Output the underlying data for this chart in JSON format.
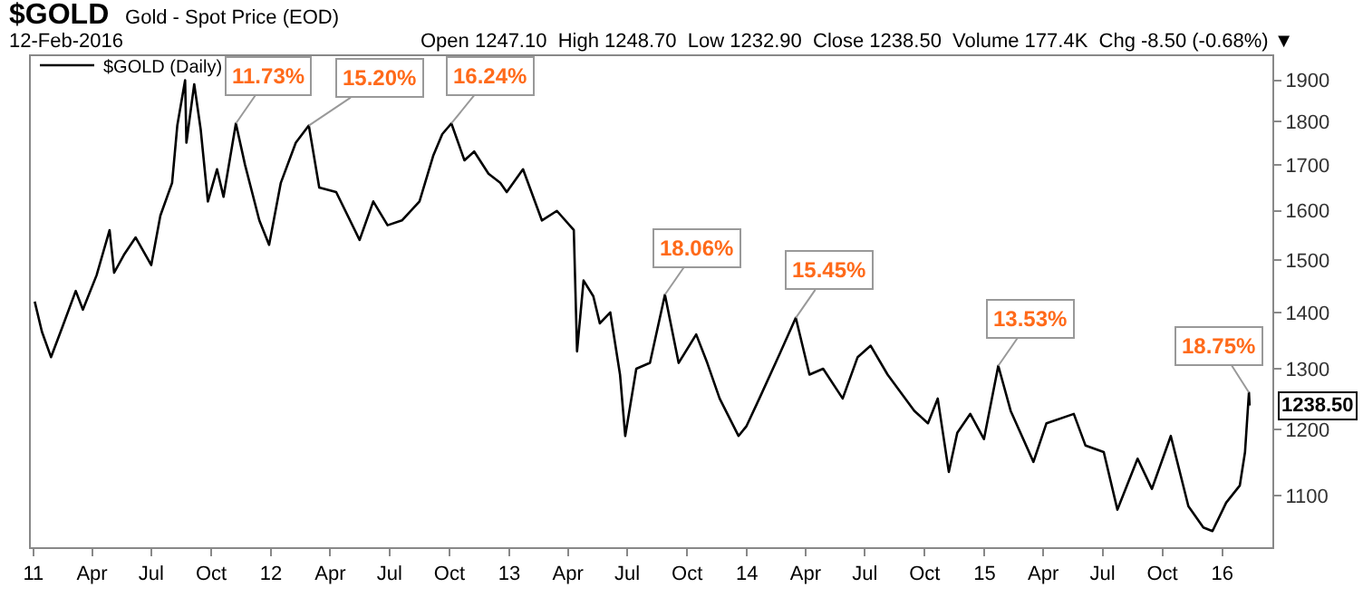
{
  "chart_data": {
    "type": "line",
    "title": "$GOLD",
    "subtitle": "Gold - Spot Price (EOD)",
    "annotations": [
      "12-Feb-2016",
      "Open 1247.10  High 1248.70  Low 1232.90  Close 1238.50  Volume 177.4K  Chg -8.50 (-0.68%) ▼",
      {
        "text": "11.73%",
        "x": "2011-11-08",
        "y": 1795
      },
      {
        "text": "15.20%",
        "x": "2012-02-28",
        "y": 1790
      },
      {
        "text": "16.24%",
        "x": "2012-10-04",
        "y": 1795
      },
      {
        "text": "18.06%",
        "x": "2013-08-28",
        "y": 1433
      },
      {
        "text": "15.45%",
        "x": "2014-03-17",
        "y": 1390
      },
      {
        "text": "13.53%",
        "x": "2015-01-22",
        "y": 1305
      },
      {
        "text": "18.75%",
        "x": "2016-02-11",
        "y": 1260
      }
    ],
    "series": [
      {
        "name": "$GOLD (Daily)",
        "color": "#000000",
        "x": [
          "2011-01-03",
          "2011-01-14",
          "2011-01-28",
          "2011-02-15",
          "2011-03-07",
          "2011-03-18",
          "2011-04-08",
          "2011-04-28",
          "2011-05-05",
          "2011-05-20",
          "2011-06-07",
          "2011-07-01",
          "2011-07-15",
          "2011-08-02",
          "2011-08-10",
          "2011-08-22",
          "2011-08-24",
          "2011-09-05",
          "2011-09-15",
          "2011-09-26",
          "2011-10-10",
          "2011-10-20",
          "2011-11-08",
          "2011-11-22",
          "2011-12-14",
          "2011-12-29",
          "2012-01-16",
          "2012-02-08",
          "2012-02-28",
          "2012-03-15",
          "2012-04-10",
          "2012-05-16",
          "2012-06-06",
          "2012-06-28",
          "2012-07-20",
          "2012-08-16",
          "2012-09-06",
          "2012-09-20",
          "2012-10-04",
          "2012-10-24",
          "2012-11-08",
          "2012-11-30",
          "2012-12-18",
          "2012-12-28",
          "2013-01-22",
          "2013-02-20",
          "2013-03-15",
          "2013-04-10",
          "2013-04-15",
          "2013-04-25",
          "2013-05-10",
          "2013-05-20",
          "2013-06-05",
          "2013-06-20",
          "2013-06-28",
          "2013-07-15",
          "2013-08-05",
          "2013-08-28",
          "2013-09-18",
          "2013-10-15",
          "2013-11-01",
          "2013-11-20",
          "2013-12-19",
          "2013-12-31",
          "2014-01-20",
          "2014-02-20",
          "2014-03-17",
          "2014-04-07",
          "2014-04-28",
          "2014-05-28",
          "2014-06-20",
          "2014-07-10",
          "2014-08-05",
          "2014-09-15",
          "2014-10-06",
          "2014-10-21",
          "2014-11-07",
          "2014-11-20",
          "2014-12-10",
          "2014-12-31",
          "2015-01-22",
          "2015-02-10",
          "2015-03-17",
          "2015-04-06",
          "2015-05-18",
          "2015-06-05",
          "2015-07-03",
          "2015-07-24",
          "2015-08-24",
          "2015-09-15",
          "2015-10-14",
          "2015-11-10",
          "2015-12-03",
          "2015-12-17",
          "2016-01-07",
          "2016-01-28",
          "2016-02-05",
          "2016-02-11",
          "2016-02-12"
        ],
        "values": [
          1420,
          1365,
          1320,
          1375,
          1440,
          1405,
          1470,
          1560,
          1475,
          1510,
          1545,
          1490,
          1590,
          1660,
          1790,
          1900,
          1750,
          1890,
          1780,
          1620,
          1690,
          1630,
          1795,
          1700,
          1580,
          1530,
          1660,
          1750,
          1790,
          1650,
          1640,
          1540,
          1620,
          1570,
          1580,
          1620,
          1720,
          1770,
          1795,
          1710,
          1730,
          1680,
          1660,
          1640,
          1690,
          1580,
          1600,
          1560,
          1330,
          1460,
          1430,
          1380,
          1400,
          1290,
          1190,
          1300,
          1310,
          1433,
          1310,
          1360,
          1310,
          1250,
          1190,
          1205,
          1250,
          1325,
          1390,
          1290,
          1300,
          1250,
          1320,
          1340,
          1290,
          1230,
          1210,
          1250,
          1135,
          1195,
          1225,
          1185,
          1305,
          1230,
          1150,
          1210,
          1225,
          1175,
          1165,
          1080,
          1155,
          1110,
          1190,
          1085,
          1055,
          1050,
          1090,
          1115,
          1165,
          1260,
          1238.5
        ],
        "value_labels": [
          null,
          null,
          null,
          null,
          null,
          null,
          null,
          null,
          null,
          null,
          null,
          null,
          null,
          null,
          null,
          null,
          null,
          null,
          null,
          null,
          null,
          null,
          null,
          null,
          null,
          null,
          null,
          null,
          null,
          null,
          null,
          null,
          null,
          null,
          null,
          null,
          null,
          null,
          null,
          null,
          null,
          null,
          null,
          null,
          null,
          null,
          null,
          null,
          null,
          null,
          null,
          null,
          null,
          null,
          null,
          null,
          null,
          null,
          null,
          null,
          null,
          null,
          null,
          null,
          null,
          null,
          null,
          null,
          null,
          null,
          null,
          null,
          null,
          null,
          null,
          null,
          null,
          null,
          null,
          null,
          null,
          null,
          null,
          null,
          null,
          null,
          null,
          null,
          null,
          null,
          null,
          null,
          null,
          null,
          null,
          null,
          null,
          null,
          "1238.50"
        ]
      }
    ],
    "log": true,
    "grid": false,
    "legend": "top left",
    "marker": "none",
    "line_style": "solid",
    "xlim": [
      "2010-12-28",
      "2016-03-18"
    ],
    "xticks": [
      {
        "value": "2011-01-01",
        "label": "11"
      },
      {
        "value": "2011-04-01",
        "label": "Apr"
      },
      {
        "value": "2011-07-01",
        "label": "Jul"
      },
      {
        "value": "2011-10-01",
        "label": "Oct"
      },
      {
        "value": "2012-01-01",
        "label": "12"
      },
      {
        "value": "2012-04-01",
        "label": "Apr"
      },
      {
        "value": "2012-07-01",
        "label": "Jul"
      },
      {
        "value": "2012-10-01",
        "label": "Oct"
      },
      {
        "value": "2013-01-01",
        "label": "13"
      },
      {
        "value": "2013-04-01",
        "label": "Apr"
      },
      {
        "value": "2013-07-01",
        "label": "Jul"
      },
      {
        "value": "2013-10-01",
        "label": "Oct"
      },
      {
        "value": "2014-01-01",
        "label": "14"
      },
      {
        "value": "2014-04-01",
        "label": "Apr"
      },
      {
        "value": "2014-07-01",
        "label": "Jul"
      },
      {
        "value": "2014-10-01",
        "label": "Oct"
      },
      {
        "value": "2015-01-01",
        "label": "15"
      },
      {
        "value": "2015-04-01",
        "label": "Apr"
      },
      {
        "value": "2015-07-01",
        "label": "Jul"
      },
      {
        "value": "2015-10-01",
        "label": "Oct"
      },
      {
        "value": "2016-01-01",
        "label": "16"
      }
    ],
    "ylim": [
      1028,
      1961
    ],
    "yticks": [
      1100,
      1200,
      1300,
      1400,
      1500,
      1600,
      1700,
      1800,
      1900
    ]
  }
}
